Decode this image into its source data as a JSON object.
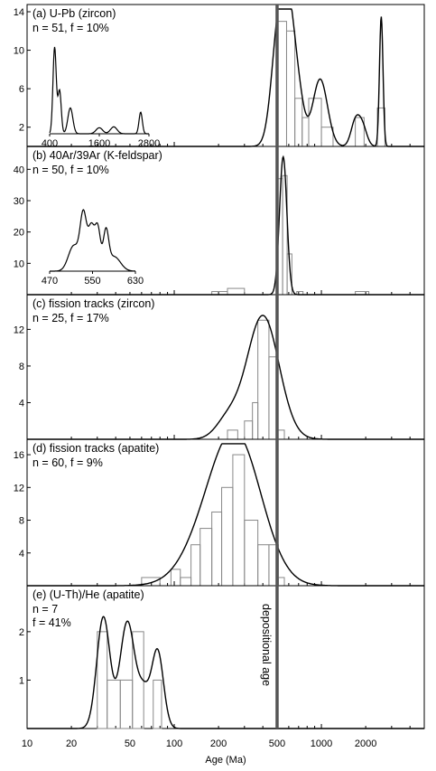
{
  "figure": {
    "xlabel": "Age (Ma)",
    "x_ticks": [
      "10",
      "20",
      "50",
      "100",
      "200",
      "500",
      "1000",
      "2000"
    ],
    "vline_label": "depositional age",
    "vline_age": 500
  },
  "chart_data": [
    {
      "type": "histogram+kde",
      "title": "(a) U-Pb (zircon)",
      "stats": "n = 51, f = 10%",
      "y_ticks": [
        "2",
        "6",
        "10",
        "14"
      ],
      "ylim": [
        0,
        14
      ],
      "hist": [
        {
          "from": 500,
          "to": 580,
          "count": 13
        },
        {
          "from": 580,
          "to": 660,
          "count": 12
        },
        {
          "from": 660,
          "to": 740,
          "count": 5
        },
        {
          "from": 740,
          "to": 820,
          "count": 3
        },
        {
          "from": 820,
          "to": 1000,
          "count": 5
        },
        {
          "from": 1000,
          "to": 1200,
          "count": 2
        },
        {
          "from": 1700,
          "to": 1950,
          "count": 3
        },
        {
          "from": 2400,
          "to": 2700,
          "count": 4
        }
      ],
      "kde_peaks": [
        {
          "age": 520,
          "height": 13.5,
          "width": 0.05
        },
        {
          "age": 610,
          "height": 9.0,
          "width": 0.04
        },
        {
          "age": 700,
          "height": 4.5,
          "width": 0.04
        },
        {
          "age": 980,
          "height": 7.0,
          "width": 0.05
        },
        {
          "age": 1700,
          "height": 2.5,
          "width": 0.03
        },
        {
          "age": 1900,
          "height": 2.0,
          "width": 0.03
        },
        {
          "age": 2550,
          "height": 13.5,
          "width": 0.012
        }
      ],
      "inset": {
        "x_ticks": [
          "400",
          "1600",
          "2800"
        ],
        "xlim": [
          400,
          2800
        ],
        "peaks": [
          {
            "age": 520,
            "height": 10,
            "width": 40
          },
          {
            "age": 640,
            "height": 5,
            "width": 40
          },
          {
            "age": 900,
            "height": 3,
            "width": 60
          },
          {
            "age": 1600,
            "height": 0.7,
            "width": 80
          },
          {
            "age": 1950,
            "height": 0.8,
            "width": 80
          },
          {
            "age": 2600,
            "height": 2.5,
            "width": 40
          }
        ]
      }
    },
    {
      "type": "histogram+kde",
      "title": "(b) 40Ar/39Ar (K-feldspar)",
      "stats": "n = 50, f = 10%",
      "y_ticks": [
        "10",
        "20",
        "30",
        "40"
      ],
      "ylim": [
        0,
        45
      ],
      "hist": [
        {
          "from": 180,
          "to": 230,
          "count": 1
        },
        {
          "from": 230,
          "to": 300,
          "count": 2
        },
        {
          "from": 500,
          "to": 545,
          "count": 37
        },
        {
          "from": 545,
          "to": 585,
          "count": 38
        },
        {
          "from": 585,
          "to": 630,
          "count": 13
        },
        {
          "from": 680,
          "to": 750,
          "count": 1
        },
        {
          "from": 1700,
          "to": 2100,
          "count": 1
        }
      ],
      "kde_peaks": [
        {
          "age": 550,
          "height": 44,
          "width": 0.025
        }
      ],
      "inset": {
        "x_ticks": [
          "470",
          "550",
          "630"
        ],
        "xlim": [
          470,
          630
        ],
        "peaks": [
          {
            "age": 533,
            "height": 30,
            "width": 6
          },
          {
            "age": 548,
            "height": 24,
            "width": 6
          },
          {
            "age": 560,
            "height": 22,
            "width": 5
          },
          {
            "age": 575,
            "height": 20,
            "width": 5
          },
          {
            "age": 590,
            "height": 8,
            "width": 12
          },
          {
            "age": 515,
            "height": 14,
            "width": 10
          }
        ]
      }
    },
    {
      "type": "histogram+kde",
      "title": "(c) fission tracks (zircon)",
      "stats": "n = 25, f = 17%",
      "y_ticks": [
        "4",
        "8",
        "12"
      ],
      "ylim": [
        0,
        15
      ],
      "hist": [
        {
          "from": 230,
          "to": 270,
          "count": 1
        },
        {
          "from": 300,
          "to": 340,
          "count": 2
        },
        {
          "from": 340,
          "to": 370,
          "count": 4
        },
        {
          "from": 370,
          "to": 440,
          "count": 13
        },
        {
          "from": 440,
          "to": 500,
          "count": 9
        },
        {
          "from": 500,
          "to": 560,
          "count": 1
        }
      ],
      "kde_peaks": [
        {
          "age": 400,
          "height": 13.5,
          "width": 0.11
        },
        {
          "age": 230,
          "height": 2.0,
          "width": 0.08
        }
      ]
    },
    {
      "type": "histogram+kde",
      "title": "(d) fission tracks (apatite)",
      "stats": "n = 60, f = 9%",
      "y_ticks": [
        "4",
        "8",
        "12",
        "16"
      ],
      "ylim": [
        0,
        17
      ],
      "hist": [
        {
          "from": 60,
          "to": 80,
          "count": 1
        },
        {
          "from": 95,
          "to": 110,
          "count": 2
        },
        {
          "from": 110,
          "to": 130,
          "count": 1
        },
        {
          "from": 130,
          "to": 150,
          "count": 5
        },
        {
          "from": 150,
          "to": 180,
          "count": 7
        },
        {
          "from": 180,
          "to": 210,
          "count": 9
        },
        {
          "from": 210,
          "to": 250,
          "count": 12
        },
        {
          "from": 250,
          "to": 300,
          "count": 16
        },
        {
          "from": 300,
          "to": 370,
          "count": 8
        },
        {
          "from": 370,
          "to": 440,
          "count": 5
        },
        {
          "from": 440,
          "to": 510,
          "count": 5
        },
        {
          "from": 510,
          "to": 560,
          "count": 1
        }
      ],
      "kde_peaks": [
        {
          "age": 270,
          "height": 16.5,
          "width": 0.17
        },
        {
          "age": 170,
          "height": 4.5,
          "width": 0.17
        }
      ]
    },
    {
      "type": "histogram+kde",
      "title": "(e) (U-Th)/He (apatite)",
      "stats_lines": [
        "n = 7",
        "f = 41%"
      ],
      "y_ticks": [
        "1",
        "2"
      ],
      "ylim": [
        0,
        2.8
      ],
      "hist": [
        {
          "from": 30,
          "to": 35,
          "count": 2
        },
        {
          "from": 35,
          "to": 43,
          "count": 1
        },
        {
          "from": 43,
          "to": 52,
          "count": 1
        },
        {
          "from": 52,
          "to": 62,
          "count": 2
        },
        {
          "from": 62,
          "to": 72,
          "count": 0
        },
        {
          "from": 72,
          "to": 82,
          "count": 1
        }
      ],
      "kde_peaks": [
        {
          "age": 33,
          "height": 2.3,
          "width": 0.045
        },
        {
          "age": 48,
          "height": 2.2,
          "width": 0.05
        },
        {
          "age": 62,
          "height": 0.7,
          "width": 0.04
        },
        {
          "age": 77,
          "height": 1.6,
          "width": 0.04
        }
      ]
    }
  ]
}
